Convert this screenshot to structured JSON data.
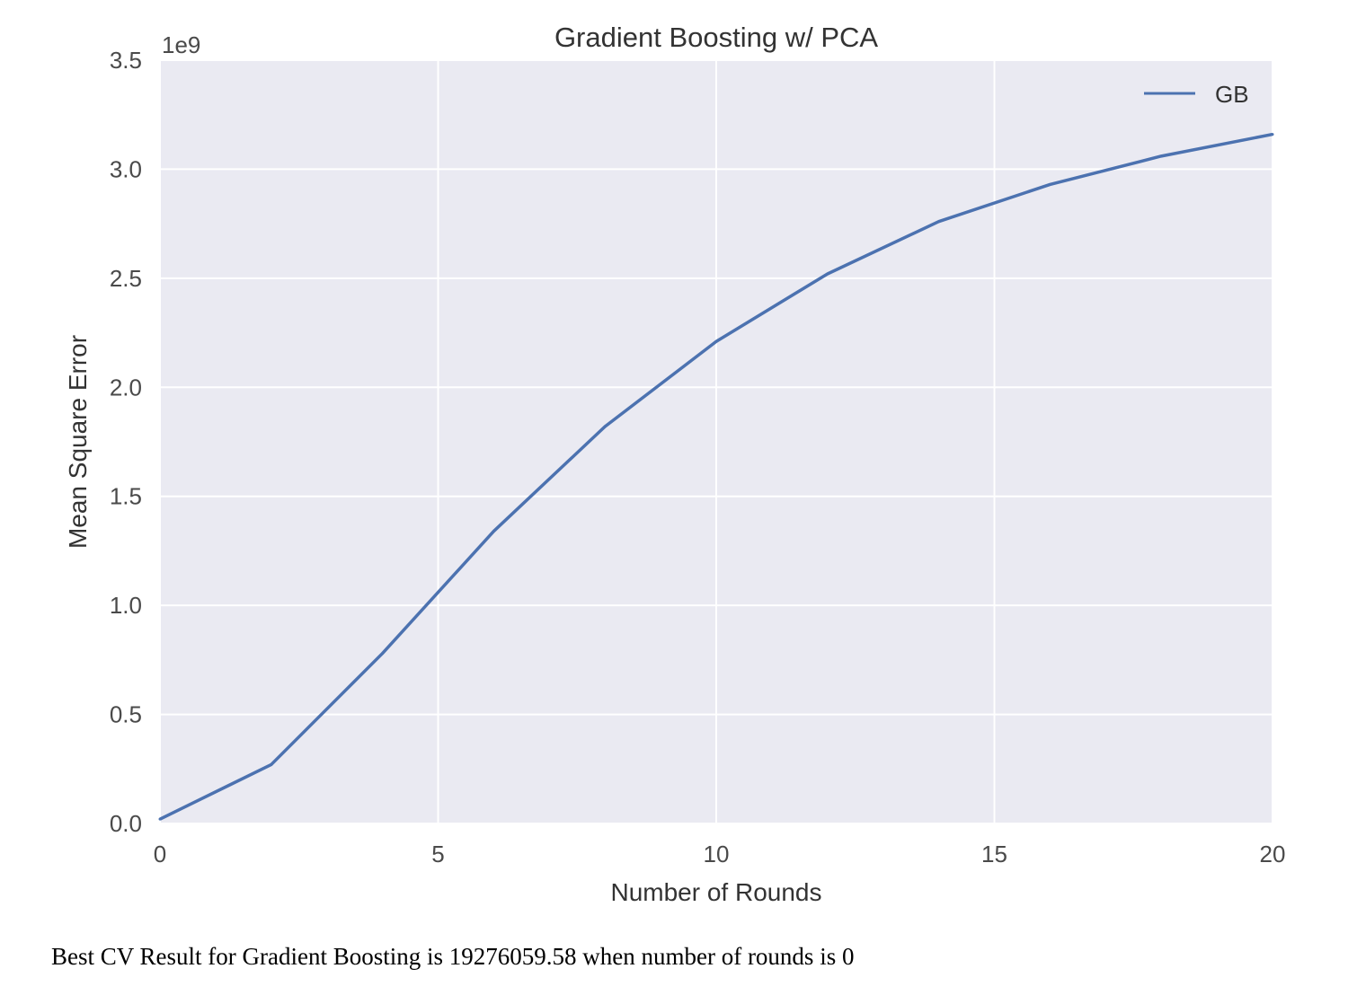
{
  "chart_data": {
    "type": "line",
    "title": "Gradient Boosting w/ PCA",
    "xlabel": "Number of Rounds",
    "ylabel": "Mean Square Error",
    "y_offset_label": "1e9",
    "xlim": [
      0,
      20
    ],
    "ylim": [
      0,
      3.5
    ],
    "x_ticks": [
      0,
      5,
      10,
      15,
      20
    ],
    "x_tick_labels": [
      "0",
      "5",
      "10",
      "15",
      "20"
    ],
    "y_ticks": [
      0,
      0.5,
      1.0,
      1.5,
      2.0,
      2.5,
      3.0,
      3.5
    ],
    "y_tick_labels": [
      "0.0",
      "0.5",
      "1.0",
      "1.5",
      "2.0",
      "2.5",
      "3.0",
      "3.5"
    ],
    "grid": true,
    "legend_position": "top-right",
    "series": [
      {
        "name": "GB",
        "color": "#4c72b0",
        "x": [
          0,
          2,
          4,
          6,
          8,
          10,
          12,
          14,
          16,
          18,
          20
        ],
        "y": [
          0.02,
          0.27,
          0.78,
          1.34,
          1.82,
          2.21,
          2.52,
          2.76,
          2.93,
          3.06,
          3.16
        ]
      }
    ]
  },
  "caption": "Best CV Result for Gradient Boosting is 19276059.58 when number of rounds is 0"
}
